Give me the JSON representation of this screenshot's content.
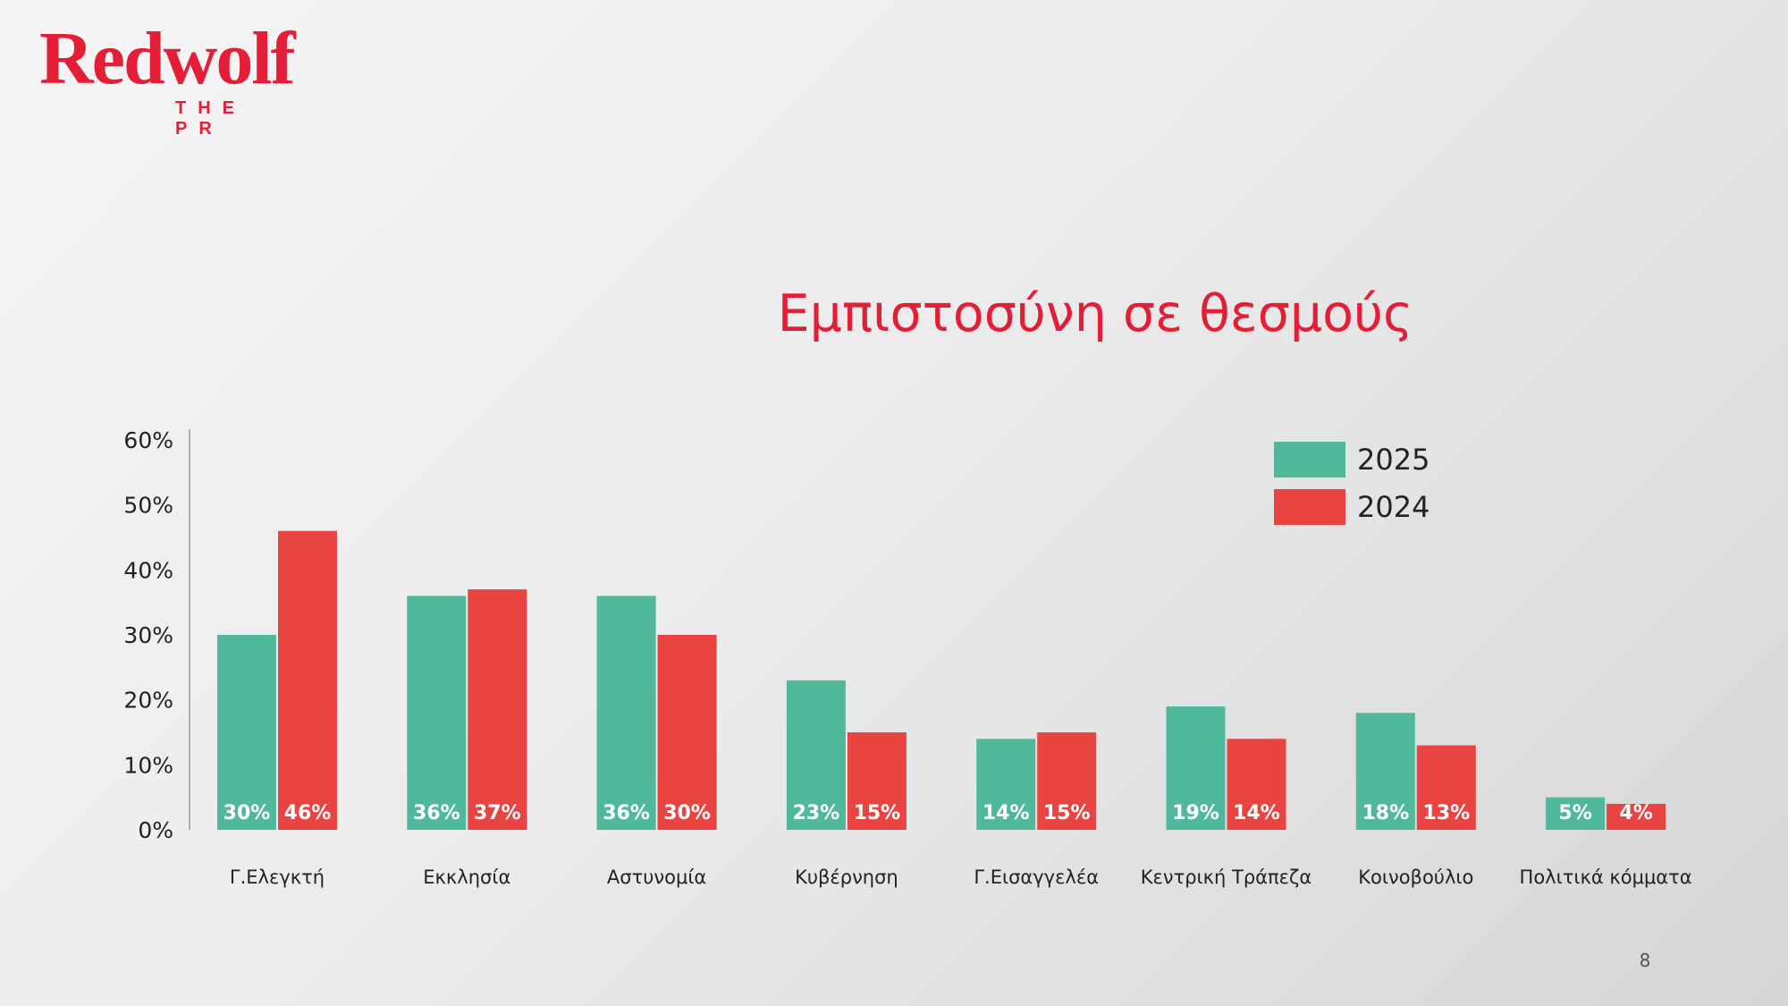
{
  "logo": {
    "name": "Redwolf",
    "tagline": "THE PR"
  },
  "page_number": "8",
  "colors": {
    "brand": "#e41e36",
    "series_2025": "#50b99c",
    "series_2024": "#e84542"
  },
  "chart_data": {
    "type": "bar",
    "title": "Εμπιστοσύνη σε θεσμούς",
    "xlabel": "",
    "ylabel": "",
    "categories": [
      "Γ.Ελεγκτή",
      "Εκκλησία",
      "Αστυνομία",
      "Κυβέρνηση",
      "Γ.Εισαγγελέα",
      "Κεντρική Τράπεζα",
      "Κοινοβούλιο",
      "Πολιτικά κόμματα"
    ],
    "series": [
      {
        "name": "2025",
        "values": [
          30,
          36,
          36,
          23,
          14,
          19,
          18,
          5
        ],
        "labels": [
          "30%",
          "36%",
          "36%",
          "23%",
          "14%",
          "19%",
          "18%",
          "5%"
        ],
        "color": "#50b99c"
      },
      {
        "name": "2024",
        "values": [
          46,
          37,
          30,
          15,
          15,
          14,
          13,
          4
        ],
        "labels": [
          "46%",
          "37%",
          "30%",
          "15%",
          "15%",
          "14%",
          "13%",
          "4%"
        ],
        "color": "#e84542"
      }
    ],
    "ylim": [
      0,
      60
    ],
    "yticks": [
      0,
      10,
      20,
      30,
      40,
      50,
      60
    ],
    "ytick_labels": [
      "0%",
      "10%",
      "20%",
      "30%",
      "40%",
      "50%",
      "60%"
    ],
    "legend_position": "top-right",
    "grid": false
  }
}
